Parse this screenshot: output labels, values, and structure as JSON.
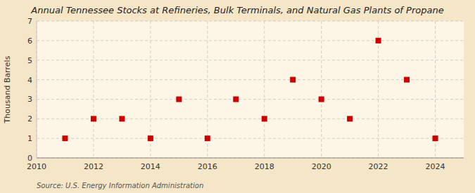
{
  "chart_data": {
    "type": "scatter",
    "title": "Annual Tennessee Stocks at Refineries, Bulk Terminals, and Natural Gas Plants of Propane",
    "y_label": "Thousand Barrels",
    "annotations": [
      "Source: U.S. Energy Information Administration"
    ],
    "x": [
      2011,
      2012,
      2013,
      2014,
      2015,
      2016,
      2017,
      2018,
      2019,
      2020,
      2021,
      2022,
      2023,
      2024
    ],
    "values": [
      1,
      2,
      2,
      1,
      3,
      1,
      3,
      2,
      4,
      3,
      2,
      6,
      4,
      1
    ],
    "xlim": [
      2010,
      2025
    ],
    "ylim": [
      0,
      7
    ],
    "xticks": [
      2010,
      2012,
      2014,
      2016,
      2018,
      2020,
      2022,
      2024
    ],
    "yticks": [
      0,
      1,
      2,
      3,
      4,
      5,
      6,
      7
    ],
    "color": "#cc0000",
    "marker": "square",
    "grid": true
  }
}
